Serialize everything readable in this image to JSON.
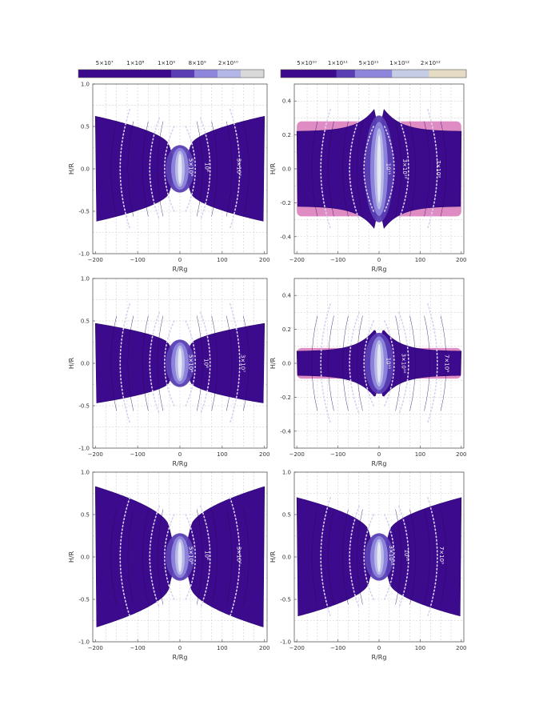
{
  "colorbars": [
    {
      "labels": [
        "5×10⁷",
        "1×10⁸",
        "1×10⁹",
        "8×10⁹",
        "2×10¹⁰"
      ],
      "colors": [
        "#3c0a8c",
        "#3c0a8c",
        "#3c0a8c",
        "#3c0a8c",
        "#5a3fb4",
        "#8e86dc",
        "#b3b7e7",
        "#d9d9d9"
      ]
    },
    {
      "labels": [
        "5×10¹⁰",
        "1×10¹¹",
        "5×10¹¹",
        "1×10¹²",
        "2×10¹²"
      ],
      "colors": [
        "#3c0a8c",
        "#3c0a8c",
        "#3c0a8c",
        "#5a3fb4",
        "#8e86dc",
        "#8e86dc",
        "#c5cde4",
        "#c5cde4",
        "#e6dcc4",
        "#e6dcc4"
      ]
    }
  ],
  "colors": {
    "fill": "#3c0a8c",
    "halo": "#e08cc4",
    "grid": "#c8c8c8",
    "contour_dotted": "#d6d2ef",
    "contour_thin": "#27065f"
  },
  "chart_data": [
    {
      "type": "heatmap",
      "panel": "top-left",
      "xlabel": "R/Rg",
      "ylabel": "H/R",
      "xlim": [
        -200,
        200
      ],
      "ylim": [
        -1.0,
        1.0
      ],
      "xticks": [
        -200,
        -100,
        0,
        100,
        200
      ],
      "yticks": [
        -1.0,
        -0.5,
        0.0,
        0.5,
        1.0
      ],
      "yticklabels": [
        "-1.0",
        "-0.5",
        "0.0",
        "0.5",
        "1.0"
      ],
      "grid": true,
      "disk": {
        "edge_half_height": 0.62,
        "neck_half_height": 0.05,
        "neck_width": 25
      },
      "contour_labels": [
        {
          "text": "5×10⁸",
          "x": 22,
          "y": 0.02
        },
        {
          "text": "10⁸",
          "x": 60,
          "y": 0.02
        },
        {
          "text": "3×10⁷",
          "x": 135,
          "y": 0.02
        }
      ]
    },
    {
      "type": "heatmap",
      "panel": "top-right",
      "xlabel": "R/Rg",
      "ylabel": "H/R",
      "xlim": [
        -200,
        200
      ],
      "ylim": [
        -0.5,
        0.5
      ],
      "xticks": [
        -200,
        -100,
        0,
        100,
        200
      ],
      "yticks": [
        -0.4,
        -0.2,
        0.0,
        0.2,
        0.4
      ],
      "yticklabels": [
        "-0.4",
        "-0.2",
        "0.0",
        "0.2",
        "0.4"
      ],
      "grid": true,
      "halo": {
        "half_height": 0.28
      },
      "disk": {
        "edge_half_height": 0.22,
        "peak_half_height": 0.35,
        "peak_x": 12
      },
      "contour_labels": [
        {
          "text": "10¹¹",
          "x": 18,
          "y": 0.0
        },
        {
          "text": "3×10¹⁰",
          "x": 58,
          "y": 0.0
        },
        {
          "text": "7×10⁹",
          "x": 140,
          "y": 0.0
        }
      ]
    },
    {
      "type": "heatmap",
      "panel": "middle-left",
      "xlabel": "R/Rg",
      "ylabel": "H/R",
      "xlim": [
        -200,
        200
      ],
      "ylim": [
        -1.0,
        1.0
      ],
      "xticks": [
        -200,
        -100,
        0,
        100,
        200
      ],
      "yticks": [
        -1.0,
        -0.5,
        0.0,
        0.5,
        1.0
      ],
      "yticklabels": [
        "-1.0",
        "-0.5",
        "0.0",
        "0.5",
        "1.0"
      ],
      "grid": true,
      "disk": {
        "edge_half_height": 0.47,
        "neck_half_height": 0.05,
        "neck_width": 25
      },
      "contour_labels": [
        {
          "text": "5×10⁸",
          "x": 22,
          "y": 0.0
        },
        {
          "text": "10⁸",
          "x": 58,
          "y": 0.0
        },
        {
          "text": "3×10⁷",
          "x": 145,
          "y": 0.0
        }
      ]
    },
    {
      "type": "heatmap",
      "panel": "middle-right",
      "xlabel": "R/Rg",
      "ylabel": "H/R",
      "xlim": [
        -200,
        200
      ],
      "ylim": [
        -0.5,
        0.5
      ],
      "xticks": [
        -200,
        -100,
        0,
        100,
        200
      ],
      "yticks": [
        -0.4,
        -0.2,
        0.0,
        0.2,
        0.4
      ],
      "yticklabels": [
        "-0.4",
        "-0.2",
        "0.0",
        "0.2",
        "0.4"
      ],
      "grid": true,
      "halo": {
        "half_height": 0.09
      },
      "disk": {
        "edge_half_height": 0.07,
        "peak_half_height": 0.2,
        "peak_x": 10
      },
      "contour_labels": [
        {
          "text": "10¹¹",
          "x": 18,
          "y": 0.0
        },
        {
          "text": "3×10¹⁰",
          "x": 55,
          "y": 0.0
        },
        {
          "text": "7×10⁹",
          "x": 160,
          "y": 0.0
        }
      ]
    },
    {
      "type": "heatmap",
      "panel": "bottom-left",
      "xlabel": "R/Rg",
      "ylabel": "H/R",
      "xlim": [
        -200,
        200
      ],
      "ylim": [
        -1.0,
        1.0
      ],
      "xticks": [
        -200,
        -100,
        0,
        100,
        200
      ],
      "yticks": [
        -1.0,
        -0.5,
        0.0,
        0.5,
        1.0
      ],
      "yticklabels": [
        "-1.0",
        "-0.5",
        "0.0",
        "0.5",
        "1.0"
      ],
      "grid": true,
      "disk": {
        "edge_half_height": 0.83,
        "neck_half_height": 0.05,
        "neck_width": 25
      },
      "contour_labels": [
        {
          "text": "5×10⁸",
          "x": 22,
          "y": 0.02
        },
        {
          "text": "10⁸",
          "x": 60,
          "y": 0.02
        },
        {
          "text": "3×10⁷",
          "x": 135,
          "y": 0.02
        }
      ]
    },
    {
      "type": "heatmap",
      "panel": "bottom-right",
      "xlabel": "R/Rg",
      "ylabel": "H/R",
      "xlim": [
        -200,
        200
      ],
      "ylim": [
        -1.0,
        1.0
      ],
      "xticks": [
        -200,
        -100,
        0,
        100,
        200
      ],
      "yticks": [
        -1.0,
        -0.5,
        0.0,
        0.5,
        1.0
      ],
      "yticklabels": [
        "-1.0",
        "-0.5",
        "0.0",
        "0.5",
        "1.0"
      ],
      "grid": true,
      "disk": {
        "edge_half_height": 0.7,
        "neck_half_height": 0.05,
        "neck_width": 25
      },
      "contour_labels": [
        {
          "text": "3×10¹⁰",
          "x": 25,
          "y": 0.02
        },
        {
          "text": "10¹⁰",
          "x": 62,
          "y": 0.02
        },
        {
          "text": "7×10⁹",
          "x": 148,
          "y": 0.02
        }
      ]
    }
  ]
}
